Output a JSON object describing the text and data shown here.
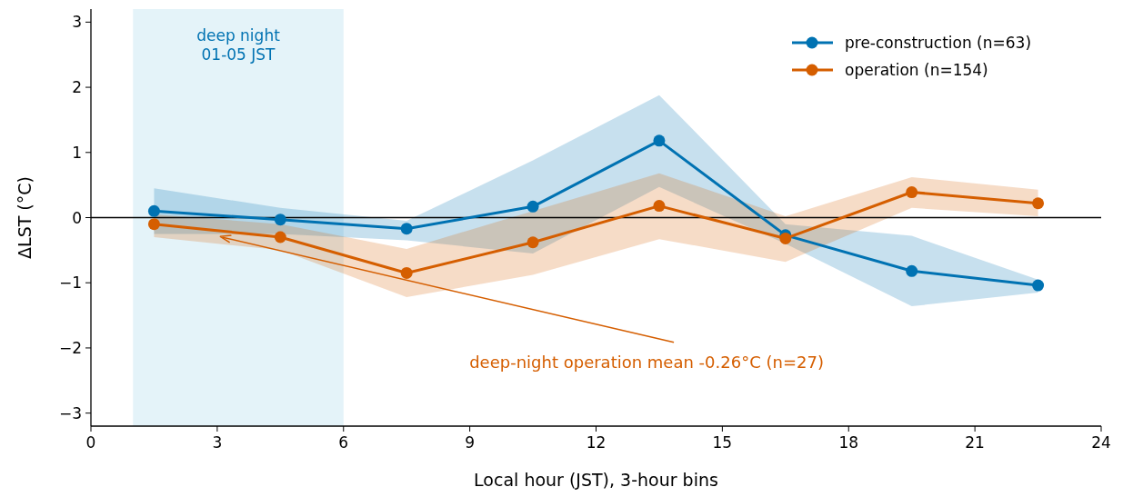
{
  "chart_data": {
    "type": "line",
    "xlabel": "Local hour (JST), 3-hour bins",
    "ylabel": "ΔLST (°C)",
    "x": [
      1.5,
      4.5,
      7.5,
      10.5,
      13.5,
      16.5,
      19.5,
      22.5
    ],
    "series": [
      {
        "name": "pre-construction (n=63)",
        "color": "#0072b2",
        "values": [
          0.1,
          -0.03,
          -0.17,
          0.17,
          1.18,
          -0.27,
          -0.82,
          -1.04
        ],
        "lower": [
          -0.25,
          -0.25,
          -0.35,
          -0.55,
          0.47,
          -0.4,
          -1.36,
          -1.15
        ],
        "upper": [
          0.45,
          0.15,
          -0.05,
          0.88,
          1.88,
          -0.1,
          -0.28,
          -0.95
        ]
      },
      {
        "name": "operation (n=154)",
        "color": "#d55e00",
        "values": [
          -0.1,
          -0.3,
          -0.85,
          -0.38,
          0.18,
          -0.32,
          0.39,
          0.22
        ],
        "lower": [
          -0.3,
          -0.5,
          -1.22,
          -0.88,
          -0.33,
          -0.68,
          0.15,
          0.02
        ],
        "upper": [
          0.05,
          -0.1,
          -0.48,
          0.1,
          0.68,
          0.02,
          0.62,
          0.43
        ]
      }
    ],
    "xlim": [
      0,
      24
    ],
    "xticks": [
      0,
      3,
      6,
      9,
      12,
      15,
      18,
      21,
      24
    ],
    "ylim": [
      -3.2,
      3.2
    ],
    "yticks": [
      -3,
      -2,
      -1,
      0,
      1,
      2,
      3
    ],
    "bands": [
      {
        "axis": "x",
        "from": 1,
        "to": 6,
        "label": "deep night\n01-05 JST",
        "color": "#e4f3f9"
      }
    ],
    "ref_lines": [
      {
        "axis": "y",
        "value": 0,
        "color": "#000000"
      }
    ],
    "annotations": [
      {
        "text": "deep-night operation mean -0.26°C (n=27)",
        "x": 3,
        "y": -0.26
      }
    ],
    "marker": "circle",
    "line_style": "solid",
    "legend": "top right",
    "grid": false
  }
}
